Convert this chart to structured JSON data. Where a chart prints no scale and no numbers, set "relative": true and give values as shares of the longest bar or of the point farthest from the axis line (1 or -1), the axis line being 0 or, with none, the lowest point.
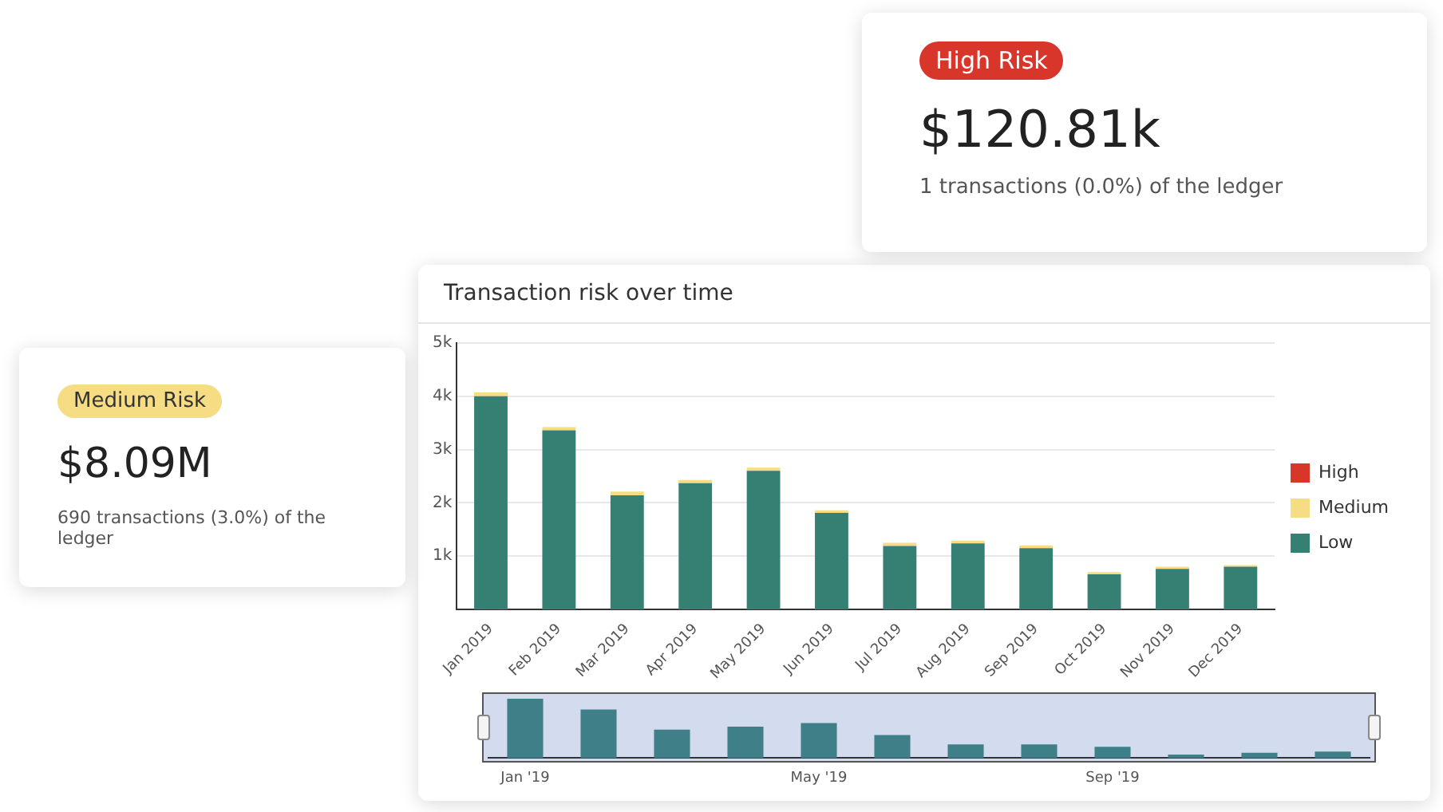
{
  "chart_data": [
    {
      "type": "bar",
      "title": "Transaction risk over time",
      "categories": [
        "Jan 2019",
        "Feb 2019",
        "Mar 2019",
        "Apr 2019",
        "May 2019",
        "Jun 2019",
        "Jul 2019",
        "Aug 2019",
        "Sep 2019",
        "Oct 2019",
        "Nov 2019",
        "Dec 2019"
      ],
      "stacked": true,
      "series": [
        {
          "name": "Low",
          "color": "#367f73",
          "values": [
            4000,
            3360,
            2140,
            2370,
            2600,
            1810,
            1190,
            1240,
            1150,
            660,
            760,
            800
          ]
        },
        {
          "name": "Medium",
          "color": "#f6dc82",
          "values": [
            70,
            60,
            70,
            60,
            60,
            50,
            60,
            50,
            50,
            40,
            40,
            30
          ]
        },
        {
          "name": "High",
          "color": "#d9362b",
          "values": [
            0,
            0,
            0,
            0,
            0,
            0,
            0,
            0,
            0,
            0,
            0,
            0
          ]
        }
      ],
      "ylim": [
        0,
        5000
      ],
      "yticks": [
        {
          "value": 1000,
          "label": "1k"
        },
        {
          "value": 2000,
          "label": "2k"
        },
        {
          "value": 3000,
          "label": "3k"
        },
        {
          "value": 4000,
          "label": "4k"
        },
        {
          "value": 5000,
          "label": "5k"
        }
      ],
      "grid": "y",
      "legend": "right"
    },
    {
      "type": "bar",
      "relative": true,
      "categories": [
        "Jan '19",
        null,
        null,
        null,
        "May '19",
        null,
        null,
        null,
        "Sep '19",
        null,
        null,
        null
      ],
      "color": "#3f7f87",
      "values": [
        1,
        0.82,
        0.48,
        0.53,
        0.59,
        0.39,
        0.23,
        0.23,
        0.19,
        0.06,
        0.09,
        0.11
      ]
    },
    {
      "type": "other",
      "title": "Medium Risk",
      "subtitle": "$8.09M",
      "color": "#f6dc82",
      "annotations": [
        "690 transactions (3.0%) of the ledger"
      ]
    },
    {
      "type": "other",
      "title": "High Risk",
      "subtitle": "$120.81k",
      "color": "#d9362b",
      "annotations": [
        "1 transactions (0.0%) of the ledger"
      ]
    }
  ]
}
